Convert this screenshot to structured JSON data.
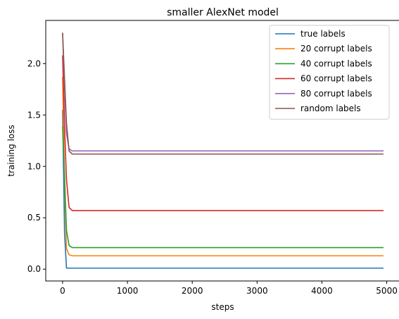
{
  "chart_data": {
    "type": "line",
    "title": "smaller AlexNet model",
    "xlabel": "steps",
    "ylabel": "training loss",
    "xlim": [
      -260,
      5200
    ],
    "ylim": [
      -0.115,
      2.42
    ],
    "xticks": [
      0,
      1000,
      2000,
      3000,
      4000,
      5000
    ],
    "xtick_labels": [
      "0",
      "1000",
      "2000",
      "3000",
      "4000",
      "5000"
    ],
    "yticks": [
      0.0,
      0.5,
      1.0,
      1.5,
      2.0
    ],
    "ytick_labels": [
      "0.0",
      "0.5",
      "1.0",
      "1.5",
      "2.0"
    ],
    "grid": false,
    "legend_position": "top-right",
    "series": [
      {
        "name": "true labels",
        "color": "#1f77b4",
        "x": [
          0,
          30,
          60,
          100,
          4950
        ],
        "y": [
          1.55,
          0.35,
          0.01,
          0.01,
          0.01
        ]
      },
      {
        "name": "20 corrupt labels",
        "color": "#ff7f0e",
        "x": [
          0,
          30,
          60,
          100,
          150,
          4950
        ],
        "y": [
          1.87,
          0.85,
          0.2,
          0.14,
          0.13,
          0.13
        ]
      },
      {
        "name": "40 corrupt labels",
        "color": "#2ca02c",
        "x": [
          0,
          30,
          60,
          100,
          150,
          4950
        ],
        "y": [
          1.39,
          0.9,
          0.38,
          0.23,
          0.21,
          0.21
        ]
      },
      {
        "name": "60 corrupt labels",
        "color": "#d62728",
        "x": [
          0,
          30,
          60,
          100,
          150,
          4950
        ],
        "y": [
          2.08,
          1.38,
          0.87,
          0.6,
          0.57,
          0.57
        ]
      },
      {
        "name": "80 corrupt labels",
        "color": "#9467bd",
        "x": [
          0,
          30,
          60,
          100,
          150,
          4950
        ],
        "y": [
          2.3,
          1.75,
          1.32,
          1.17,
          1.15,
          1.15
        ]
      },
      {
        "name": "random labels",
        "color": "#8c564b",
        "x": [
          0,
          30,
          60,
          100,
          150,
          4950
        ],
        "y": [
          2.3,
          1.85,
          1.42,
          1.15,
          1.12,
          1.12
        ]
      }
    ]
  }
}
